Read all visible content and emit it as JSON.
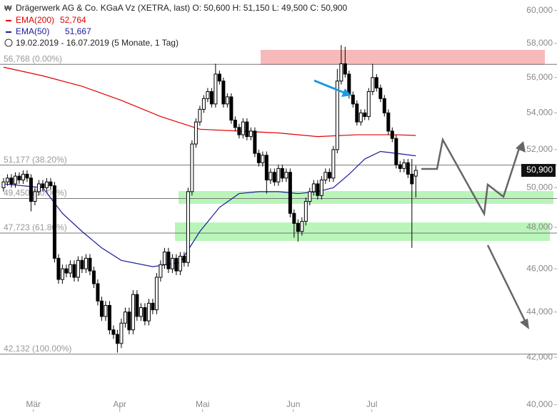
{
  "chart_data": {
    "type": "candlestick",
    "title": "Drägerwerk AG & Co. KGaA Vz (XETRA, last)  O: 50,600  H: 51,150  L: 49,500  C: 50,900",
    "subtitle": "19.02.2019 - 16.07.2019  (5 Monate, 1 Tag)",
    "log_scale": true,
    "ylim": [
      39700,
      60650
    ],
    "yticks": [
      {
        "value": 40000,
        "label": "40,000"
      },
      {
        "value": 42000,
        "label": "42,000"
      },
      {
        "value": 44000,
        "label": "44,000"
      },
      {
        "value": 46000,
        "label": "46,000"
      },
      {
        "value": 48000,
        "label": "48,000"
      },
      {
        "value": 50000,
        "label": "50,000"
      },
      {
        "value": 52000,
        "label": "52,000"
      },
      {
        "value": 54000,
        "label": "54,000"
      },
      {
        "value": 56000,
        "label": "56,000"
      },
      {
        "value": 58000,
        "label": "58,000"
      },
      {
        "value": 60000,
        "label": "60,000"
      }
    ],
    "xlim": [
      -0.9,
      135.5
    ],
    "xticks": [
      {
        "value": 7.6,
        "label": "Mär"
      },
      {
        "value": 29.6,
        "label": "Apr"
      },
      {
        "value": 50.7,
        "label": "Mai"
      },
      {
        "value": 73.8,
        "label": "Jun"
      },
      {
        "value": 93.8,
        "label": "Jul"
      }
    ],
    "last_price": {
      "value": 50900,
      "label": "50,900"
    },
    "fib_levels": [
      {
        "value": 56768,
        "label": "56,768 (0.00%)"
      },
      {
        "value": 51177,
        "label": "51,177 (38.20%)"
      },
      {
        "value": 49450,
        "label": "49,450 (50.00%)"
      },
      {
        "value": 47723,
        "label": "47,723 (61.80%)"
      },
      {
        "value": 42132,
        "label": "42,132 (100.00%)"
      }
    ],
    "series": [
      {
        "name": "EMA(200)",
        "color": "#e00000",
        "legend_value": "52,764",
        "x": [
          0,
          10,
          20,
          30,
          40,
          50,
          60,
          70,
          80,
          90,
          100,
          105
        ],
        "values": [
          56600,
          56100,
          55500,
          54700,
          53800,
          53100,
          53000,
          52900,
          52700,
          52800,
          52800,
          52764
        ]
      },
      {
        "name": "EMA(50)",
        "color": "#1a1a9a",
        "legend_value": "51,667",
        "x": [
          0,
          10,
          15,
          20,
          25,
          30,
          38,
          45,
          50,
          55,
          60,
          65,
          70,
          75,
          80,
          84,
          88,
          92,
          96,
          100,
          105
        ],
        "values": [
          50200,
          50000,
          48700,
          47800,
          47000,
          46400,
          46100,
          46300,
          47800,
          49000,
          49700,
          49800,
          49800,
          49700,
          49800,
          50000,
          50700,
          51500,
          51900,
          51800,
          51667
        ]
      }
    ],
    "candles": [
      {
        "o": 50000,
        "h": 50500,
        "l": 49800,
        "c": 50300
      },
      {
        "o": 50300,
        "h": 50700,
        "l": 50100,
        "c": 50500
      },
      {
        "o": 50500,
        "h": 50700,
        "l": 50000,
        "c": 50200
      },
      {
        "o": 50200,
        "h": 50800,
        "l": 50000,
        "c": 50600
      },
      {
        "o": 50600,
        "h": 50800,
        "l": 50200,
        "c": 50400
      },
      {
        "o": 50400,
        "h": 50900,
        "l": 50200,
        "c": 50700
      },
      {
        "o": 50700,
        "h": 50900,
        "l": 50300,
        "c": 50500
      },
      {
        "o": 50500,
        "h": 50700,
        "l": 48800,
        "c": 49300
      },
      {
        "o": 49300,
        "h": 50000,
        "l": 49100,
        "c": 49800
      },
      {
        "o": 49800,
        "h": 50400,
        "l": 49600,
        "c": 50200
      },
      {
        "o": 50200,
        "h": 50400,
        "l": 49800,
        "c": 50000
      },
      {
        "o": 50000,
        "h": 50500,
        "l": 49800,
        "c": 50300
      },
      {
        "o": 50300,
        "h": 50500,
        "l": 49900,
        "c": 50100
      },
      {
        "o": 50100,
        "h": 50300,
        "l": 46300,
        "c": 46500
      },
      {
        "o": 46500,
        "h": 46700,
        "l": 45300,
        "c": 45500
      },
      {
        "o": 45500,
        "h": 46200,
        "l": 45300,
        "c": 46000
      },
      {
        "o": 46000,
        "h": 46200,
        "l": 45600,
        "c": 45800
      },
      {
        "o": 45800,
        "h": 46400,
        "l": 45600,
        "c": 46200
      },
      {
        "o": 46200,
        "h": 46400,
        "l": 45400,
        "c": 45600
      },
      {
        "o": 45600,
        "h": 46600,
        "l": 45400,
        "c": 46400
      },
      {
        "o": 46400,
        "h": 46600,
        "l": 45800,
        "c": 46000
      },
      {
        "o": 46000,
        "h": 46700,
        "l": 45800,
        "c": 46500
      },
      {
        "o": 46500,
        "h": 46700,
        "l": 45700,
        "c": 45900
      },
      {
        "o": 45900,
        "h": 46100,
        "l": 45100,
        "c": 45300
      },
      {
        "o": 45300,
        "h": 45500,
        "l": 44300,
        "c": 44500
      },
      {
        "o": 44500,
        "h": 44700,
        "l": 43600,
        "c": 43800
      },
      {
        "o": 43800,
        "h": 44500,
        "l": 43600,
        "c": 44300
      },
      {
        "o": 44300,
        "h": 44500,
        "l": 43000,
        "c": 43200
      },
      {
        "o": 43200,
        "h": 43400,
        "l": 42800,
        "c": 43000
      },
      {
        "o": 43000,
        "h": 43200,
        "l": 42200,
        "c": 42600
      },
      {
        "o": 42600,
        "h": 43700,
        "l": 42400,
        "c": 43500
      },
      {
        "o": 43500,
        "h": 44200,
        "l": 43300,
        "c": 44000
      },
      {
        "o": 44000,
        "h": 44200,
        "l": 43000,
        "c": 43200
      },
      {
        "o": 43200,
        "h": 45000,
        "l": 43000,
        "c": 44800
      },
      {
        "o": 44800,
        "h": 45000,
        "l": 43600,
        "c": 43800
      },
      {
        "o": 43800,
        "h": 44400,
        "l": 43600,
        "c": 44200
      },
      {
        "o": 44200,
        "h": 44400,
        "l": 43400,
        "c": 43600
      },
      {
        "o": 43600,
        "h": 44600,
        "l": 43400,
        "c": 44400
      },
      {
        "o": 44400,
        "h": 44600,
        "l": 43900,
        "c": 44100
      },
      {
        "o": 44100,
        "h": 45800,
        "l": 43900,
        "c": 45600
      },
      {
        "o": 45600,
        "h": 46400,
        "l": 45400,
        "c": 46200
      },
      {
        "o": 46200,
        "h": 47000,
        "l": 46000,
        "c": 46800
      },
      {
        "o": 46800,
        "h": 47000,
        "l": 45800,
        "c": 46000
      },
      {
        "o": 46000,
        "h": 46700,
        "l": 45800,
        "c": 46500
      },
      {
        "o": 46500,
        "h": 46700,
        "l": 45700,
        "c": 45900
      },
      {
        "o": 45900,
        "h": 46800,
        "l": 45700,
        "c": 46600
      },
      {
        "o": 46600,
        "h": 46800,
        "l": 46100,
        "c": 46300
      },
      {
        "o": 46300,
        "h": 50000,
        "l": 46100,
        "c": 49800
      },
      {
        "o": 49800,
        "h": 52500,
        "l": 49600,
        "c": 52300
      },
      {
        "o": 52300,
        "h": 53700,
        "l": 52100,
        "c": 53500
      },
      {
        "o": 53500,
        "h": 54400,
        "l": 53300,
        "c": 54200
      },
      {
        "o": 54200,
        "h": 55000,
        "l": 54000,
        "c": 54800
      },
      {
        "o": 54800,
        "h": 55400,
        "l": 54600,
        "c": 55200
      },
      {
        "o": 55200,
        "h": 55400,
        "l": 54300,
        "c": 54500
      },
      {
        "o": 54500,
        "h": 56800,
        "l": 54300,
        "c": 56200
      },
      {
        "o": 56200,
        "h": 56400,
        "l": 55600,
        "c": 55800
      },
      {
        "o": 55800,
        "h": 56000,
        "l": 54300,
        "c": 54500
      },
      {
        "o": 54500,
        "h": 55100,
        "l": 54300,
        "c": 54900
      },
      {
        "o": 54900,
        "h": 55100,
        "l": 53400,
        "c": 53600
      },
      {
        "o": 53600,
        "h": 53800,
        "l": 53000,
        "c": 53200
      },
      {
        "o": 53200,
        "h": 53400,
        "l": 52600,
        "c": 52800
      },
      {
        "o": 52800,
        "h": 53700,
        "l": 52600,
        "c": 53500
      },
      {
        "o": 53500,
        "h": 53700,
        "l": 52500,
        "c": 52700
      },
      {
        "o": 52700,
        "h": 53200,
        "l": 52500,
        "c": 53000
      },
      {
        "o": 53000,
        "h": 53200,
        "l": 51600,
        "c": 51800
      },
      {
        "o": 51800,
        "h": 52000,
        "l": 51100,
        "c": 51300
      },
      {
        "o": 51300,
        "h": 51900,
        "l": 51100,
        "c": 51700
      },
      {
        "o": 51700,
        "h": 51900,
        "l": 49700,
        "c": 50400
      },
      {
        "o": 50400,
        "h": 51000,
        "l": 50200,
        "c": 50800
      },
      {
        "o": 50800,
        "h": 51000,
        "l": 50100,
        "c": 50300
      },
      {
        "o": 50300,
        "h": 51200,
        "l": 50100,
        "c": 51000
      },
      {
        "o": 51000,
        "h": 51200,
        "l": 50300,
        "c": 50500
      },
      {
        "o": 50500,
        "h": 51000,
        "l": 50300,
        "c": 50800
      },
      {
        "o": 50800,
        "h": 51000,
        "l": 48500,
        "c": 48700
      },
      {
        "o": 48700,
        "h": 48900,
        "l": 47500,
        "c": 48200
      },
      {
        "o": 48200,
        "h": 48400,
        "l": 47300,
        "c": 47800
      },
      {
        "o": 47800,
        "h": 48500,
        "l": 47600,
        "c": 48300
      },
      {
        "o": 48300,
        "h": 49500,
        "l": 48100,
        "c": 49300
      },
      {
        "o": 49300,
        "h": 50000,
        "l": 49100,
        "c": 49800
      },
      {
        "o": 49800,
        "h": 50400,
        "l": 49600,
        "c": 50200
      },
      {
        "o": 50200,
        "h": 50400,
        "l": 49400,
        "c": 49600
      },
      {
        "o": 49600,
        "h": 50600,
        "l": 49400,
        "c": 50400
      },
      {
        "o": 50400,
        "h": 51000,
        "l": 50200,
        "c": 50800
      },
      {
        "o": 50800,
        "h": 51000,
        "l": 50300,
        "c": 50500
      },
      {
        "o": 50500,
        "h": 52200,
        "l": 50300,
        "c": 52000
      },
      {
        "o": 52000,
        "h": 56500,
        "l": 51800,
        "c": 55800
      },
      {
        "o": 55800,
        "h": 57900,
        "l": 55600,
        "c": 56800
      },
      {
        "o": 56800,
        "h": 57800,
        "l": 56000,
        "c": 56200
      },
      {
        "o": 56200,
        "h": 56400,
        "l": 54800,
        "c": 55000
      },
      {
        "o": 55000,
        "h": 55200,
        "l": 54300,
        "c": 54500
      },
      {
        "o": 54500,
        "h": 54700,
        "l": 53300,
        "c": 53500
      },
      {
        "o": 53500,
        "h": 54200,
        "l": 53300,
        "c": 54000
      },
      {
        "o": 54000,
        "h": 54200,
        "l": 53600,
        "c": 53800
      },
      {
        "o": 53800,
        "h": 55400,
        "l": 53600,
        "c": 55200
      },
      {
        "o": 55200,
        "h": 56800,
        "l": 55000,
        "c": 56000
      },
      {
        "o": 56000,
        "h": 56200,
        "l": 55200,
        "c": 55400
      },
      {
        "o": 55400,
        "h": 55600,
        "l": 54600,
        "c": 54800
      },
      {
        "o": 54800,
        "h": 55000,
        "l": 53800,
        "c": 54000
      },
      {
        "o": 54000,
        "h": 54200,
        "l": 52800,
        "c": 53000
      },
      {
        "o": 53000,
        "h": 53200,
        "l": 52400,
        "c": 52600
      },
      {
        "o": 52600,
        "h": 52800,
        "l": 51000,
        "c": 51200
      },
      {
        "o": 51200,
        "h": 51400,
        "l": 50800,
        "c": 51000
      },
      {
        "o": 51000,
        "h": 51500,
        "l": 50800,
        "c": 51300
      },
      {
        "o": 51300,
        "h": 51500,
        "l": 50500,
        "c": 50700
      },
      {
        "o": 50700,
        "h": 51500,
        "l": 47000,
        "c": 50200
      },
      {
        "o": 50600,
        "h": 51150,
        "l": 49500,
        "c": 50900
      }
    ]
  }
}
